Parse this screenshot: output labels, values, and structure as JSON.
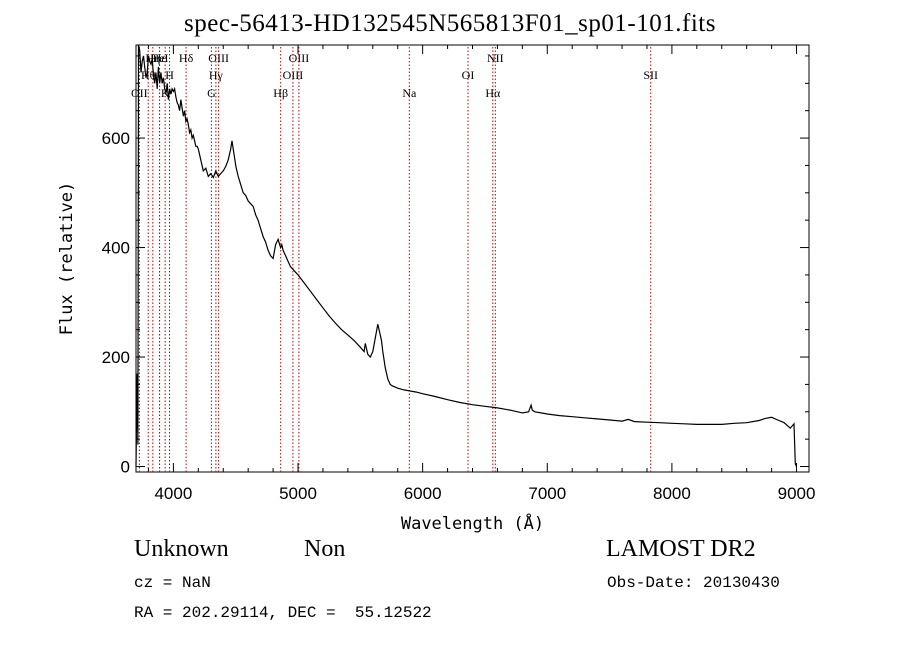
{
  "chart_data": {
    "type": "line",
    "title": "spec-56413-HD132545N565813F01_sp01-101.fits",
    "xlabel": "Wavelength (Å)",
    "ylabel": "Flux (relative)",
    "xlim": [
      3700,
      9100
    ],
    "ylim": [
      -10,
      770
    ],
    "x_ticks": [
      4000,
      5000,
      6000,
      7000,
      8000,
      9000
    ],
    "y_ticks": [
      0,
      200,
      400,
      600
    ],
    "series": [
      {
        "x": [
          3700,
          3710,
          3715,
          3720,
          3730,
          3740,
          3750,
          3760,
          3770,
          3780,
          3790,
          3800,
          3810,
          3820,
          3830,
          3840,
          3850,
          3860,
          3870,
          3880,
          3890,
          3900,
          3910,
          3920,
          3930,
          3940,
          3950,
          3960,
          3970,
          3980,
          3990,
          4000,
          4010,
          4020,
          4030,
          4040,
          4050,
          4060,
          4070,
          4080,
          4090,
          4100,
          4110,
          4120,
          4130,
          4140,
          4150,
          4160,
          4170,
          4180,
          4190,
          4200,
          4220,
          4240,
          4260,
          4280,
          4300,
          4320,
          4340,
          4360,
          4380,
          4400,
          4420,
          4440,
          4460,
          4470,
          4480,
          4490,
          4500,
          4510,
          4520,
          4540,
          4560,
          4580,
          4600,
          4620,
          4640,
          4660,
          4680,
          4700,
          4720,
          4740,
          4760,
          4780,
          4800,
          4820,
          4840,
          4860,
          4870,
          4880,
          4890,
          4900,
          4910,
          4920,
          4940,
          4960,
          4980,
          5000,
          5050,
          5100,
          5150,
          5200,
          5250,
          5300,
          5350,
          5400,
          5450,
          5500,
          5530,
          5540,
          5560,
          5580,
          5600,
          5620,
          5640,
          5660,
          5670,
          5680,
          5700,
          5720,
          5740,
          5760,
          5780,
          5800,
          5850,
          5900,
          5950,
          6000,
          6100,
          6200,
          6300,
          6400,
          6500,
          6600,
          6700,
          6800,
          6850,
          6870,
          6880,
          6900,
          6950,
          7000,
          7100,
          7200,
          7300,
          7400,
          7500,
          7600,
          7650,
          7700,
          7800,
          7900,
          8000,
          8100,
          8200,
          8300,
          8400,
          8500,
          8600,
          8700,
          8750,
          8800,
          8850,
          8900,
          8950,
          8980,
          8990,
          9000
        ],
        "y": [
          0,
          170,
          40,
          780,
          760,
          720,
          740,
          750,
          730,
          710,
          720,
          750,
          740,
          735,
          745,
          715,
          700,
          720,
          690,
          730,
          700,
          720,
          700,
          710,
          690,
          680,
          700,
          670,
          690,
          680,
          690,
          685,
          690,
          675,
          665,
          660,
          650,
          670,
          655,
          640,
          650,
          630,
          635,
          625,
          610,
          615,
          600,
          605,
          595,
          585,
          585,
          580,
          560,
          540,
          545,
          530,
          535,
          528,
          540,
          530,
          535,
          540,
          548,
          560,
          580,
          595,
          580,
          565,
          550,
          540,
          530,
          515,
          500,
          495,
          485,
          480,
          475,
          460,
          450,
          435,
          420,
          410,
          395,
          385,
          380,
          405,
          415,
          400,
          405,
          395,
          390,
          385,
          380,
          375,
          365,
          360,
          355,
          350,
          335,
          320,
          305,
          290,
          275,
          262,
          250,
          240,
          230,
          218,
          210,
          225,
          205,
          200,
          210,
          235,
          260,
          240,
          230,
          210,
          180,
          160,
          150,
          147,
          145,
          143,
          140,
          138,
          136,
          133,
          128,
          122,
          117,
          113,
          110,
          107,
          103,
          98,
          100,
          112,
          103,
          100,
          98,
          96,
          93,
          91,
          89,
          87,
          85,
          83,
          86,
          82,
          81,
          80,
          79,
          78,
          77,
          77,
          77,
          79,
          80,
          84,
          88,
          90,
          85,
          80,
          70,
          78,
          5,
          0
        ]
      }
    ],
    "emission_lines": [
      {
        "label": "OII",
        "x": 3727,
        "row": 3
      },
      {
        "label": "Hη",
        "x": 3835,
        "row": 1
      },
      {
        "label": "Hε",
        "x": 3889,
        "row": 1
      },
      {
        "label": "HeI",
        "x": 3889,
        "row": 1
      },
      {
        "label": "K",
        "x": 3934,
        "row": 3
      },
      {
        "label": "Hδ",
        "x": 4102,
        "row": 1
      },
      {
        "label": "H",
        "x": 3969,
        "row": 2
      },
      {
        "label": "Hθ",
        "x": 3798,
        "row": 2
      },
      {
        "label": "OIII",
        "x": 4363,
        "row": 1
      },
      {
        "label": "Hγ",
        "x": 4341,
        "row": 2
      },
      {
        "label": "G",
        "x": 4305,
        "row": 3
      },
      {
        "label": "Hβ",
        "x": 4861,
        "row": 3
      },
      {
        "label": "OIII",
        "x": 5007,
        "row": 1
      },
      {
        "label": "OIII",
        "x": 4959,
        "row": 2
      },
      {
        "label": "Na",
        "x": 5893,
        "row": 3
      },
      {
        "label": "OI",
        "x": 6364,
        "row": 2
      },
      {
        "label": "NII",
        "x": 6583,
        "row": 1
      },
      {
        "label": "Hα",
        "x": 6563,
        "row": 3
      },
      {
        "label": "SII",
        "x": 7830,
        "row": 2
      }
    ],
    "line_color": "#000000",
    "marker_color": "#c00000",
    "grid": false,
    "legend": "none"
  },
  "info": {
    "class": "Unknown",
    "subclass": "Non",
    "survey": "LAMOST DR2",
    "cz": "cz = NaN",
    "obs_date": "Obs-Date: 20130430",
    "coords": "RA = 202.29114, DEC =  55.12522"
  }
}
